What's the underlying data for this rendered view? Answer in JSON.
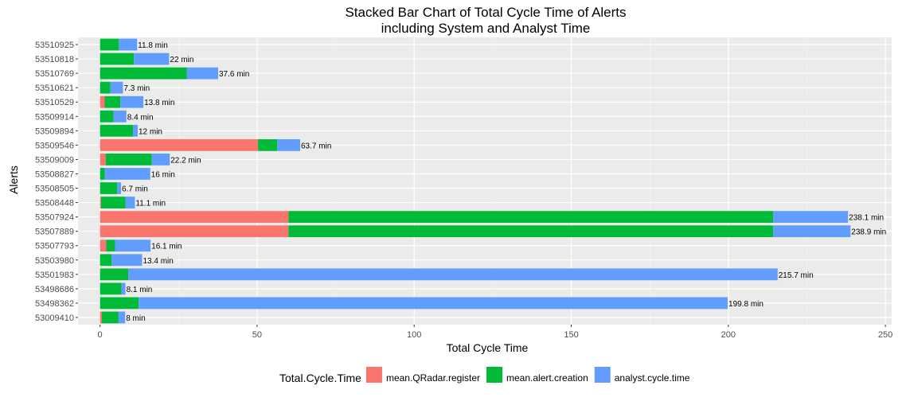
{
  "chart_data": {
    "type": "bar",
    "orientation": "horizontal",
    "stacked": true,
    "title": "Stacked Bar Chart of Total Cycle Time of Alerts",
    "subtitle": "including System and Analyst Time",
    "xlabel": "Total Cycle Time",
    "ylabel": "Alerts",
    "xlim": [
      -7,
      252
    ],
    "xticks": [
      0,
      50,
      100,
      150,
      200,
      250
    ],
    "grid": true,
    "background": "#ebebeb",
    "legend": {
      "title": "Total.Cycle.Time",
      "position": "bottom"
    },
    "categories": [
      "53510925",
      "53510818",
      "53510769",
      "53510621",
      "53510529",
      "53509914",
      "53509894",
      "53509546",
      "53509009",
      "53508827",
      "53508505",
      "53508448",
      "53507924",
      "53507889",
      "53507793",
      "53503980",
      "53501983",
      "53498686",
      "53498362",
      "53009410"
    ],
    "series": [
      {
        "name": "mean.QRadar.register",
        "color": "#f8766d",
        "values": [
          0,
          0,
          0,
          0,
          1.5,
          0,
          0,
          50.3,
          1.8,
          0,
          0,
          0.3,
          60,
          60,
          2,
          0,
          0,
          0,
          0,
          0.6
        ]
      },
      {
        "name": "mean.alert.creation",
        "color": "#00ba38",
        "values": [
          6,
          10.8,
          27.6,
          3.3,
          5,
          4.3,
          10.5,
          6.1,
          14.7,
          1.5,
          5.5,
          7.8,
          154.3,
          154.3,
          2.8,
          3.7,
          9,
          6.8,
          12.3,
          5.3
        ]
      },
      {
        "name": "analyst.cycle.time",
        "color": "#619cff",
        "values": [
          5.8,
          11.2,
          10,
          4,
          7.3,
          4.1,
          1.5,
          7.3,
          5.7,
          14.5,
          1.2,
          3,
          23.8,
          24.6,
          11.3,
          9.7,
          206.7,
          1.3,
          187.5,
          2.1
        ]
      }
    ],
    "data_labels": [
      "11.8 min",
      "22 min",
      "37.6 min",
      "7.3 min",
      "13.8 min",
      "8.4 min",
      "12 min",
      "63.7 min",
      "22.2 min",
      "16 min",
      "6.7 min",
      "11.1 min",
      "238.1 min",
      "238.9 min",
      "16.1 min",
      "13.4 min",
      "215.7 min",
      "8.1 min",
      "199.8 min",
      "8 min"
    ],
    "totals": [
      11.8,
      22,
      37.6,
      7.3,
      13.8,
      8.4,
      12,
      63.7,
      22.2,
      16,
      6.7,
      11.1,
      238.1,
      238.9,
      16.1,
      13.4,
      215.7,
      8.1,
      199.8,
      8
    ]
  }
}
